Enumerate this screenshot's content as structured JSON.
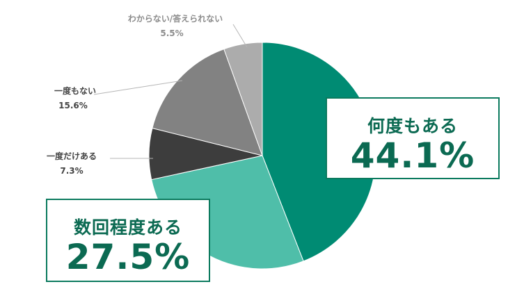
{
  "chart_data": {
    "type": "pie",
    "slices": [
      {
        "label": "何度もある",
        "value": 44.1,
        "display": "44.1%",
        "color": "#008b73"
      },
      {
        "label": "数回程度ある",
        "value": 27.5,
        "display": "27.5%",
        "color": "#4fbea9"
      },
      {
        "label": "一度だけある",
        "value": 7.3,
        "display": "7.3%",
        "color": "#3d3d3d"
      },
      {
        "label": "一度もない",
        "value": 15.6,
        "display": "15.6%",
        "color": "#828282"
      },
      {
        "label": "わからない/答えられない",
        "value": 5.5,
        "display": "5.5%",
        "color": "#acacac"
      }
    ],
    "start": "12 o'clock",
    "direction": "clockwise"
  }
}
